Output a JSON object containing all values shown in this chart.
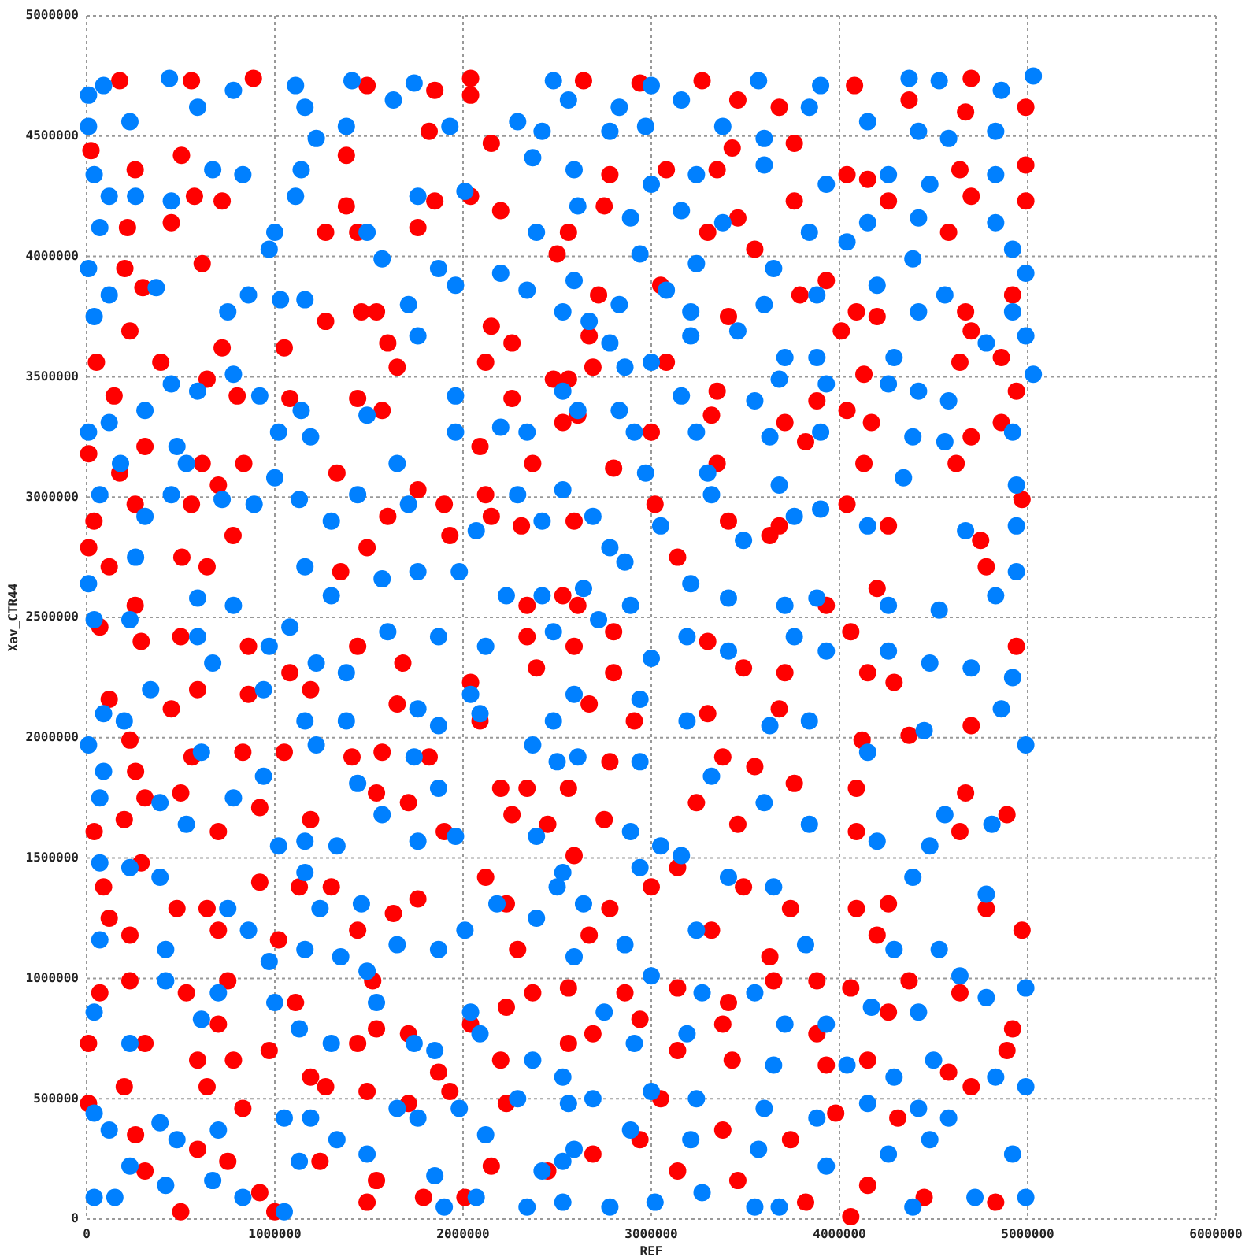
{
  "chart_data": {
    "type": "scatter",
    "xlabel": "REF",
    "ylabel": "Xav_CTR44",
    "xlim": [
      0,
      6000000
    ],
    "ylim": [
      0,
      5000000
    ],
    "xticks": [
      0,
      1000000,
      2000000,
      3000000,
      4000000,
      5000000,
      6000000
    ],
    "yticks": [
      0,
      500000,
      1000000,
      1500000,
      2000000,
      2500000,
      3000000,
      3500000,
      4000000,
      4500000,
      5000000
    ],
    "grid": true,
    "marker": "circle",
    "series": [
      {
        "color": "#ff0000",
        "x": [
          176000,
          557000,
          886000,
          23000,
          258000,
          504000,
          573000,
          720000,
          450000,
          217000,
          614000,
          203000,
          299000,
          52000,
          230000,
          394000,
          720000,
          640000,
          800000,
          146000,
          310000,
          11000,
          176000,
          614000,
          835000,
          700000,
          39000,
          258000,
          557000,
          120000,
          506000,
          778000,
          11000,
          640000,
          258000,
          1270000,
          1380000,
          1380000,
          1490000,
          1460000,
          1540000,
          1600000,
          1270000,
          1650000,
          1440000,
          1570000,
          1050000,
          1080000,
          1330000,
          1760000,
          1490000,
          1600000,
          1900000,
          1930000,
          1350000,
          1820000,
          1850000,
          1850000,
          1760000,
          1440000,
          2040000,
          2040000,
          2150000,
          2040000,
          2200000,
          2500000,
          2150000,
          2260000,
          2120000,
          2260000,
          2480000,
          2530000,
          2090000,
          2370000,
          2120000,
          2150000,
          2310000,
          2340000,
          2530000,
          2640000,
          2940000,
          3270000,
          3460000,
          3680000,
          4080000,
          4370000,
          4700000,
          4990000,
          4670000,
          2780000,
          3080000,
          3350000,
          3430000,
          3760000,
          4040000,
          4150000,
          4640000,
          4990000,
          2750000,
          3460000,
          3760000,
          4260000,
          4700000,
          4990000,
          2560000,
          3300000,
          3550000,
          4580000,
          2720000,
          3050000,
          3410000,
          3790000,
          3930000,
          4090000,
          4200000,
          4670000,
          4920000,
          2670000,
          4010000,
          4700000,
          2560000,
          2690000,
          3080000,
          3350000,
          3880000,
          4130000,
          4640000,
          4860000,
          4940000,
          2610000,
          3000000,
          3320000,
          3710000,
          4040000,
          4170000,
          4700000,
          4860000,
          2800000,
          3350000,
          3820000,
          4130000,
          4620000,
          2590000,
          3020000,
          3410000,
          3680000,
          4040000,
          4260000,
          4750000,
          4970000,
          2610000,
          3140000,
          3630000,
          3930000,
          4200000,
          4780000,
          70000,
          290000,
          500000,
          860000,
          1080000,
          1440000,
          1680000,
          2040000,
          2340000,
          2390000,
          120000,
          450000,
          590000,
          860000,
          1190000,
          1650000,
          2090000,
          230000,
          560000,
          260000,
          830000,
          1050000,
          1410000,
          1570000,
          1820000,
          2200000,
          2340000,
          310000,
          500000,
          40000,
          200000,
          700000,
          920000,
          1190000,
          1540000,
          1710000,
          1900000,
          2260000,
          2450000,
          90000,
          290000,
          480000,
          640000,
          700000,
          920000,
          1130000,
          1300000,
          1440000,
          1630000,
          1760000,
          2120000,
          2230000,
          120000,
          230000,
          1020000,
          2290000,
          70000,
          230000,
          530000,
          750000,
          700000,
          1110000,
          1520000,
          1540000,
          1440000,
          1710000,
          1870000,
          2040000,
          2230000,
          2370000,
          10000,
          310000,
          590000,
          780000,
          970000,
          1190000,
          2200000,
          10000,
          200000,
          260000,
          640000,
          830000,
          1270000,
          1490000,
          1710000,
          1930000,
          2230000,
          310000,
          590000,
          750000,
          920000,
          1000000,
          1240000,
          1490000,
          1540000,
          1790000,
          2010000,
          2150000,
          2450000,
          500000,
          2590000,
          2800000,
          2800000,
          3300000,
          3490000,
          3710000,
          4060000,
          4150000,
          4290000,
          4940000,
          2670000,
          2910000,
          3300000,
          3680000,
          4120000,
          4370000,
          4700000,
          2560000,
          2780000,
          3380000,
          3550000,
          3760000,
          4090000,
          4670000,
          4890000,
          2750000,
          3240000,
          3460000,
          4090000,
          4640000,
          2590000,
          3000000,
          3140000,
          3490000,
          3740000,
          4090000,
          4260000,
          4780000,
          4970000,
          2670000,
          2780000,
          3320000,
          3630000,
          3880000,
          4200000,
          2560000,
          2860000,
          3140000,
          3410000,
          3650000,
          4060000,
          4370000,
          4640000,
          4920000,
          2690000,
          2940000,
          3380000,
          3880000,
          4260000,
          2560000,
          3140000,
          3430000,
          3930000,
          4150000,
          4580000,
          4890000,
          2940000,
          3050000,
          3380000,
          3740000,
          3980000,
          4310000,
          4700000,
          2690000,
          3140000,
          3460000,
          3820000,
          4150000,
          4450000,
          4830000,
          4060000
        ],
        "values": [
          4730000,
          4730000,
          4740000,
          4440000,
          4360000,
          4420000,
          4250000,
          4230000,
          4140000,
          4120000,
          3970000,
          3950000,
          3870000,
          3560000,
          3690000,
          3560000,
          3620000,
          3490000,
          3420000,
          3420000,
          3210000,
          3180000,
          3100000,
          3140000,
          3140000,
          3050000,
          2900000,
          2970000,
          2970000,
          2710000,
          2750000,
          2840000,
          2790000,
          2710000,
          2550000,
          4100000,
          4210000,
          4420000,
          4710000,
          3770000,
          3770000,
          3640000,
          3730000,
          3540000,
          3410000,
          3360000,
          3620000,
          3410000,
          3100000,
          3030000,
          2790000,
          2920000,
          2970000,
          2840000,
          2690000,
          4520000,
          4690000,
          4230000,
          4120000,
          4100000,
          4740000,
          4670000,
          4470000,
          4250000,
          4190000,
          4010000,
          3710000,
          3640000,
          3560000,
          3410000,
          3490000,
          3310000,
          3210000,
          3140000,
          3010000,
          2920000,
          2880000,
          2550000,
          2590000,
          4730000,
          4720000,
          4730000,
          4650000,
          4620000,
          4710000,
          4650000,
          4740000,
          4620000,
          4600000,
          4340000,
          4360000,
          4360000,
          4450000,
          4470000,
          4340000,
          4320000,
          4360000,
          4380000,
          4210000,
          4160000,
          4230000,
          4230000,
          4250000,
          4230000,
          4100000,
          4100000,
          4030000,
          4100000,
          3840000,
          3880000,
          3750000,
          3840000,
          3900000,
          3770000,
          3750000,
          3770000,
          3840000,
          3670000,
          3690000,
          3690000,
          3490000,
          3540000,
          3560000,
          3440000,
          3400000,
          3510000,
          3560000,
          3580000,
          3440000,
          3340000,
          3270000,
          3340000,
          3310000,
          3360000,
          3310000,
          3250000,
          3310000,
          3120000,
          3140000,
          3230000,
          3140000,
          3140000,
          2900000,
          2970000,
          2900000,
          2880000,
          2970000,
          2880000,
          2820000,
          2990000,
          2550000,
          2750000,
          2840000,
          2550000,
          2620000,
          2710000,
          2460000,
          2400000,
          2420000,
          2380000,
          2270000,
          2380000,
          2310000,
          2230000,
          2420000,
          2290000,
          2160000,
          2120000,
          2200000,
          2180000,
          2200000,
          2140000,
          2070000,
          1990000,
          1920000,
          1860000,
          1940000,
          1940000,
          1920000,
          1940000,
          1920000,
          1790000,
          1790000,
          1750000,
          1770000,
          1610000,
          1660000,
          1610000,
          1710000,
          1660000,
          1770000,
          1730000,
          1610000,
          1680000,
          1640000,
          1380000,
          1480000,
          1290000,
          1290000,
          1200000,
          1400000,
          1380000,
          1380000,
          1200000,
          1270000,
          1330000,
          1420000,
          1310000,
          1250000,
          1180000,
          1160000,
          1120000,
          940000,
          990000,
          940000,
          990000,
          810000,
          900000,
          990000,
          790000,
          730000,
          770000,
          610000,
          810000,
          880000,
          940000,
          730000,
          730000,
          660000,
          660000,
          700000,
          590000,
          660000,
          480000,
          550000,
          350000,
          550000,
          460000,
          550000,
          530000,
          480000,
          530000,
          480000,
          200000,
          290000,
          240000,
          110000,
          30000,
          240000,
          70000,
          160000,
          90000,
          90000,
          220000,
          200000,
          30000,
          2380000,
          2440000,
          2270000,
          2400000,
          2290000,
          2270000,
          2440000,
          2270000,
          2230000,
          2380000,
          2140000,
          2070000,
          2100000,
          2120000,
          1990000,
          2010000,
          2050000,
          1790000,
          1900000,
          1920000,
          1880000,
          1810000,
          1790000,
          1770000,
          1680000,
          1660000,
          1730000,
          1640000,
          1610000,
          1610000,
          1510000,
          1380000,
          1460000,
          1380000,
          1290000,
          1290000,
          1310000,
          1290000,
          1200000,
          1180000,
          1290000,
          1200000,
          1090000,
          990000,
          1180000,
          960000,
          940000,
          960000,
          900000,
          990000,
          960000,
          990000,
          940000,
          790000,
          770000,
          830000,
          810000,
          770000,
          860000,
          730000,
          700000,
          660000,
          640000,
          660000,
          610000,
          700000,
          330000,
          500000,
          370000,
          330000,
          440000,
          420000,
          550000,
          270000,
          200000,
          160000,
          70000,
          140000,
          90000,
          70000,
          10000
        ]
      },
      {
        "color": "#0080ff",
        "x": [
          10000,
          90000,
          10000,
          230000,
          440000,
          590000,
          780000,
          1110000,
          1160000,
          1220000,
          1140000,
          1410000,
          1630000,
          1740000,
          1380000,
          1930000,
          2290000,
          2480000,
          2420000,
          40000,
          120000,
          260000,
          70000,
          450000,
          670000,
          830000,
          1110000,
          1000000,
          970000,
          1490000,
          1760000,
          2010000,
          2370000,
          2390000,
          10000,
          120000,
          40000,
          370000,
          750000,
          860000,
          1030000,
          1160000,
          1570000,
          1710000,
          1760000,
          1870000,
          1960000,
          2200000,
          2340000,
          2530000,
          10000,
          120000,
          310000,
          450000,
          590000,
          780000,
          480000,
          530000,
          180000,
          920000,
          1020000,
          1190000,
          1140000,
          1490000,
          1650000,
          1960000,
          1960000,
          2200000,
          2340000,
          2530000,
          70000,
          310000,
          450000,
          720000,
          890000,
          1000000,
          1130000,
          1300000,
          1440000,
          1710000,
          2070000,
          2290000,
          2420000,
          10000,
          260000,
          590000,
          780000,
          1160000,
          1300000,
          1570000,
          1760000,
          1980000,
          2230000,
          2420000,
          2560000,
          2830000,
          3000000,
          3160000,
          3570000,
          3900000,
          3840000,
          4370000,
          4530000,
          5030000,
          4860000,
          2780000,
          2970000,
          3380000,
          3600000,
          4150000,
          4420000,
          4580000,
          4830000,
          2590000,
          3000000,
          3240000,
          3600000,
          3930000,
          4260000,
          4480000,
          4830000,
          2610000,
          2890000,
          3160000,
          3380000,
          3840000,
          4040000,
          4150000,
          4420000,
          4830000,
          4920000,
          2940000,
          3240000,
          3650000,
          4390000,
          2590000,
          2830000,
          3080000,
          3210000,
          3600000,
          3880000,
          4200000,
          4420000,
          4560000,
          4920000,
          4990000,
          2670000,
          2780000,
          2860000,
          3210000,
          3460000,
          3710000,
          3880000,
          4290000,
          4780000,
          4990000,
          3000000,
          2610000,
          2830000,
          3160000,
          3550000,
          3680000,
          3930000,
          4260000,
          4420000,
          4580000,
          5030000,
          2910000,
          3240000,
          3630000,
          3900000,
          4390000,
          4560000,
          4920000,
          2530000,
          2970000,
          3300000,
          3680000,
          4340000,
          4940000,
          3050000,
          3320000,
          3490000,
          3760000,
          3900000,
          4150000,
          4670000,
          4940000,
          2690000,
          2780000,
          2860000,
          2640000,
          2890000,
          3210000,
          3410000,
          3710000,
          3880000,
          4260000,
          4530000,
          4830000,
          4940000,
          40000,
          230000,
          590000,
          670000,
          970000,
          1080000,
          1220000,
          1380000,
          1600000,
          1870000,
          2120000,
          2480000,
          90000,
          340000,
          200000,
          940000,
          1160000,
          1380000,
          1760000,
          1870000,
          2040000,
          2090000,
          2480000,
          10000,
          90000,
          610000,
          780000,
          940000,
          1220000,
          1440000,
          1570000,
          1740000,
          1870000,
          2370000,
          2500000,
          70000,
          390000,
          530000,
          1020000,
          1160000,
          1330000,
          1760000,
          1960000,
          2390000,
          70000,
          230000,
          390000,
          750000,
          860000,
          1160000,
          1240000,
          1460000,
          1650000,
          1870000,
          2010000,
          2180000,
          2390000,
          2500000,
          70000,
          420000,
          970000,
          1160000,
          1350000,
          1490000,
          40000,
          230000,
          420000,
          610000,
          700000,
          1000000,
          1130000,
          1300000,
          1540000,
          1740000,
          1850000,
          2040000,
          2090000,
          2370000,
          2530000,
          40000,
          120000,
          390000,
          480000,
          700000,
          1050000,
          1190000,
          1330000,
          1490000,
          1650000,
          1760000,
          1980000,
          2120000,
          2290000,
          2420000,
          2530000,
          40000,
          150000,
          230000,
          420000,
          670000,
          830000,
          1050000,
          1130000,
          1850000,
          2070000,
          2340000,
          1900000,
          2720000,
          3000000,
          3190000,
          3410000,
          3760000,
          3930000,
          4260000,
          4480000,
          4700000,
          4920000,
          2590000,
          2940000,
          3190000,
          3630000,
          3840000,
          4150000,
          4450000,
          4860000,
          4990000,
          2610000,
          2940000,
          3320000,
          3600000,
          3840000,
          4200000,
          4480000,
          4560000,
          4810000,
          2890000,
          3050000,
          2940000,
          3160000,
          2530000,
          3410000,
          3650000,
          4390000,
          4780000,
          2640000,
          2860000,
          3240000,
          3820000,
          4290000,
          4530000,
          4640000,
          4780000,
          4990000,
          2590000,
          3000000,
          3270000,
          3550000,
          3710000,
          3930000,
          4170000,
          4420000,
          2750000,
          2910000,
          3190000,
          3650000,
          4040000,
          4290000,
          4500000,
          4830000,
          4990000,
          2560000,
          2690000,
          3000000,
          3240000,
          3600000,
          3880000,
          4150000,
          4420000,
          4580000,
          2590000,
          2890000,
          3210000,
          3570000,
          3930000,
          4260000,
          4480000,
          4920000,
          2530000,
          2780000,
          3020000,
          3270000,
          3550000,
          3680000,
          4390000,
          4720000,
          4990000
        ],
        "values": [
          4670000,
          4710000,
          4540000,
          4560000,
          4740000,
          4620000,
          4690000,
          4710000,
          4620000,
          4490000,
          4360000,
          4730000,
          4650000,
          4720000,
          4540000,
          4540000,
          4560000,
          4730000,
          4520000,
          4340000,
          4250000,
          4250000,
          4120000,
          4230000,
          4360000,
          4340000,
          4250000,
          4100000,
          4030000,
          4100000,
          4250000,
          4270000,
          4410000,
          4100000,
          3950000,
          3840000,
          3750000,
          3870000,
          3770000,
          3840000,
          3820000,
          3820000,
          3990000,
          3800000,
          3670000,
          3950000,
          3880000,
          3930000,
          3860000,
          3770000,
          3270000,
          3310000,
          3360000,
          3470000,
          3440000,
          3510000,
          3210000,
          3140000,
          3140000,
          3420000,
          3270000,
          3250000,
          3360000,
          3340000,
          3140000,
          3420000,
          3270000,
          3290000,
          3270000,
          3440000,
          3010000,
          2920000,
          3010000,
          2990000,
          2970000,
          3080000,
          2990000,
          2900000,
          3010000,
          2970000,
          2860000,
          3010000,
          2900000,
          2640000,
          2750000,
          2580000,
          2550000,
          2710000,
          2590000,
          2660000,
          2690000,
          2690000,
          2590000,
          2590000,
          4650000,
          4620000,
          4710000,
          4650000,
          4730000,
          4710000,
          4620000,
          4740000,
          4730000,
          4750000,
          4690000,
          4520000,
          4540000,
          4540000,
          4490000,
          4560000,
          4520000,
          4490000,
          4520000,
          4360000,
          4300000,
          4340000,
          4380000,
          4300000,
          4340000,
          4300000,
          4340000,
          4210000,
          4160000,
          4190000,
          4140000,
          4100000,
          4060000,
          4140000,
          4160000,
          4140000,
          4030000,
          4010000,
          3970000,
          3950000,
          3990000,
          3900000,
          3800000,
          3860000,
          3770000,
          3800000,
          3840000,
          3880000,
          3770000,
          3840000,
          3770000,
          3930000,
          3730000,
          3640000,
          3540000,
          3670000,
          3690000,
          3580000,
          3580000,
          3580000,
          3640000,
          3670000,
          3560000,
          3360000,
          3360000,
          3420000,
          3400000,
          3490000,
          3470000,
          3470000,
          3440000,
          3400000,
          3510000,
          3270000,
          3270000,
          3250000,
          3270000,
          3250000,
          3230000,
          3270000,
          3030000,
          3100000,
          3100000,
          3050000,
          3080000,
          3050000,
          2880000,
          3010000,
          2820000,
          2920000,
          2950000,
          2880000,
          2860000,
          2880000,
          2920000,
          2790000,
          2730000,
          2620000,
          2550000,
          2640000,
          2580000,
          2550000,
          2580000,
          2550000,
          2530000,
          2590000,
          2690000,
          2490000,
          2490000,
          2420000,
          2310000,
          2380000,
          2460000,
          2310000,
          2270000,
          2440000,
          2420000,
          2380000,
          2440000,
          2100000,
          2200000,
          2070000,
          2200000,
          2070000,
          2070000,
          2120000,
          2050000,
          2180000,
          2100000,
          2070000,
          1970000,
          1860000,
          1940000,
          1750000,
          1840000,
          1970000,
          1810000,
          1680000,
          1920000,
          1790000,
          1970000,
          1900000,
          1750000,
          1730000,
          1640000,
          1550000,
          1570000,
          1550000,
          1570000,
          1590000,
          1590000,
          1480000,
          1460000,
          1420000,
          1290000,
          1200000,
          1440000,
          1290000,
          1310000,
          1140000,
          1120000,
          1200000,
          1310000,
          1250000,
          1380000,
          1160000,
          1120000,
          1070000,
          1120000,
          1090000,
          1030000,
          860000,
          730000,
          990000,
          830000,
          940000,
          900000,
          790000,
          730000,
          900000,
          730000,
          700000,
          860000,
          770000,
          660000,
          590000,
          440000,
          370000,
          400000,
          330000,
          370000,
          420000,
          420000,
          330000,
          270000,
          460000,
          420000,
          460000,
          350000,
          500000,
          200000,
          240000,
          90000,
          90000,
          220000,
          140000,
          160000,
          90000,
          30000,
          240000,
          180000,
          90000,
          50000,
          50000,
          2490000,
          2330000,
          2420000,
          2360000,
          2420000,
          2360000,
          2360000,
          2310000,
          2290000,
          2250000,
          2180000,
          2160000,
          2070000,
          2050000,
          2070000,
          1940000,
          2030000,
          2120000,
          1970000,
          1920000,
          1900000,
          1840000,
          1730000,
          1640000,
          1570000,
          1550000,
          1680000,
          1640000,
          1610000,
          1550000,
          1460000,
          1510000,
          1440000,
          1420000,
          1380000,
          1420000,
          1350000,
          1310000,
          1140000,
          1200000,
          1140000,
          1120000,
          1120000,
          1010000,
          920000,
          960000,
          1090000,
          1010000,
          940000,
          940000,
          810000,
          810000,
          880000,
          860000,
          860000,
          730000,
          770000,
          640000,
          640000,
          590000,
          660000,
          590000,
          550000,
          480000,
          500000,
          530000,
          500000,
          460000,
          420000,
          480000,
          460000,
          420000,
          290000,
          370000,
          330000,
          290000,
          220000,
          270000,
          330000,
          270000,
          70000,
          50000,
          70000,
          110000,
          50000,
          50000,
          50000,
          90000,
          90000
        ]
      }
    ]
  }
}
